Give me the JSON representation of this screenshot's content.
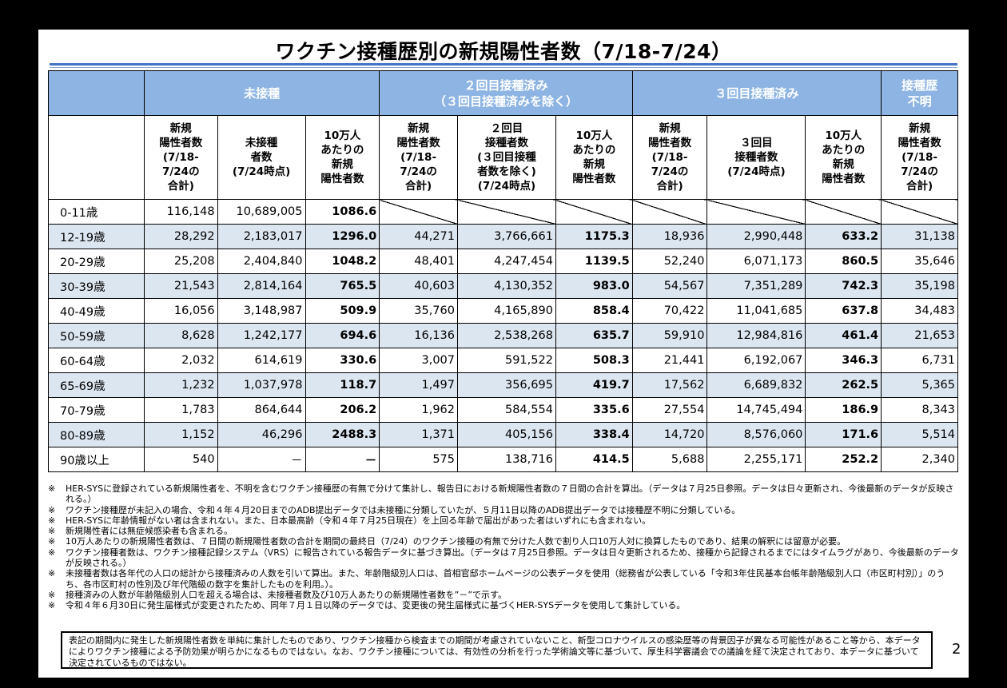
{
  "title": "ワクチン接種歴別の新規陽性者数（7/18-7/24）",
  "groups": [
    "未接種",
    "２回目接種済み\n（３回目接種済みを除く）",
    "３回目接種済み",
    "接種歴\n不明"
  ],
  "subheaders": [
    "新規\n陽性者数\n(7/18-\n7/24の\n合計)",
    "未接種\n者数\n(7/24時点)",
    "10万人\nあたりの\n新規\n陽性者数",
    "新規\n陽性者数\n(7/18-\n7/24の\n合計)",
    "２回目\n接種者数\n(３回目接種\n者数を除く)\n(7/24時点)",
    "10万人\nあたりの\n新規\n陽性者数",
    "新規\n陽性者数\n(7/18-\n7/24の\n合計)",
    "３回目\n接種者数\n(7/24時点)",
    "10万人\nあたりの\n新規\n陽性者数",
    "新規\n陽性者数\n(7/18-\n7/24の\n合計)"
  ],
  "rows": [
    [
      "0-11歳",
      "116,148",
      "10,689,005",
      "1086.6",
      "",
      "",
      "",
      "",
      "",
      "",
      ""
    ],
    [
      "12-19歳",
      "28,292",
      "2,183,017",
      "1296.0",
      "44,271",
      "3,766,661",
      "1175.3",
      "18,936",
      "2,990,448",
      "633.2",
      "31,138"
    ],
    [
      "20-29歳",
      "25,208",
      "2,404,840",
      "1048.2",
      "48,401",
      "4,247,454",
      "1139.5",
      "52,240",
      "6,071,173",
      "860.5",
      "35,646"
    ],
    [
      "30-39歳",
      "21,543",
      "2,814,164",
      "765.5",
      "40,603",
      "4,130,352",
      "983.0",
      "54,567",
      "7,351,289",
      "742.3",
      "35,198"
    ],
    [
      "40-49歳",
      "16,056",
      "3,148,987",
      "509.9",
      "35,760",
      "4,165,890",
      "858.4",
      "70,422",
      "11,041,685",
      "637.8",
      "34,483"
    ],
    [
      "50-59歳",
      "8,628",
      "1,242,177",
      "694.6",
      "16,136",
      "2,538,268",
      "635.7",
      "59,910",
      "12,984,816",
      "461.4",
      "21,653"
    ],
    [
      "60-64歳",
      "2,032",
      "614,619",
      "330.6",
      "3,007",
      "591,522",
      "508.3",
      "21,441",
      "6,192,067",
      "346.3",
      "6,731"
    ],
    [
      "65-69歳",
      "1,232",
      "1,037,978",
      "118.7",
      "1,497",
      "356,695",
      "419.7",
      "17,562",
      "6,689,832",
      "262.5",
      "5,365"
    ],
    [
      "70-79歳",
      "1,783",
      "864,644",
      "206.2",
      "1,962",
      "584,554",
      "335.6",
      "27,554",
      "14,745,494",
      "186.9",
      "8,343"
    ],
    [
      "80-89歳",
      "1,152",
      "46,296",
      "2488.3",
      "1,371",
      "405,156",
      "338.4",
      "14,720",
      "8,576,060",
      "171.6",
      "5,514"
    ],
    [
      "90歳以上",
      "540",
      "－",
      "－",
      "575",
      "138,716",
      "414.5",
      "5,688",
      "2,255,171",
      "252.2",
      "2,340"
    ]
  ],
  "note_mark": "※",
  "notes": [
    "HER-SYSに登録されている新規陽性者を、不明を含むワクチン接種歴の有無で分けて集計し、報告日における新規陽性者数の７日間の合計を算出。（データは７月25日参照。データは日々更新され、今後最新のデータが反映される。）",
    "ワクチン接種歴が未記入の場合、令和４年４月20日までのADB提出データでは未接種に分類していたが、５月11日以降のADB提出データでは接種歴不明に分類している。",
    "HER-SYSに年齢情報がない者は含まれない。また、日本最高齢（令和４年７月25日現在）を上回る年齢で届出があった者はいずれにも含まれない。",
    "新規陽性者には無症候感染者も含まれる。",
    "10万人あたりの新規陽性者数は、７日間の新規陽性者数の合計を期間の最終日（7/24）のワクチン接種の有無で分けた人数で割り人口10万人対に換算したものであり、結果の解釈には留意が必要。",
    "ワクチン接種者数は、ワクチン接種記録システム（VRS）に報告されている報告データに基づき算出。（データは７月25日参照。データは日々更新されるため、接種から記録されるまでにはタイムラグがあり、今後最新のデータが反映される。）",
    "未接種者数は各年代の人口の総計から接種済みの人数を引いて算出。また、年齢階級別人口は、首相官邸ホームページの公表データを使用（総務省が公表している「令和3年住民基本台帳年齢階級別人口（市区町村別）」のうち、各市区町村の性別及び年代階級の数字を集計したものを利用。）。",
    "接種済みの人数が年齢階級別人口を超える場合は、未接種者数及び10万人あたりの新規陽性者数を”－”で示す。",
    "令和４年６月30日に発生届様式が変更されたため、同年７月１日以降のデータでは、変更後の発生届様式に基づくHER-SYSデータを使用して集計している。"
  ],
  "disclaimer": "表記の期間内に発生した新規陽性者数を単純に集計したものであり、ワクチン接種から検査までの期間が考慮されていないこと、新型コロナウイルスの感染歴等の背景因子が異なる可能性があること等から、本データによりワクチン接種による予防効果が明らかになるものではない。なお、ワクチン接種については、有効性の分析を行った学術論文等に基づいて、厚生科学審議会での議論を経て決定されており、本データに基づいて決定されているものではない。",
  "page_number": "2"
}
